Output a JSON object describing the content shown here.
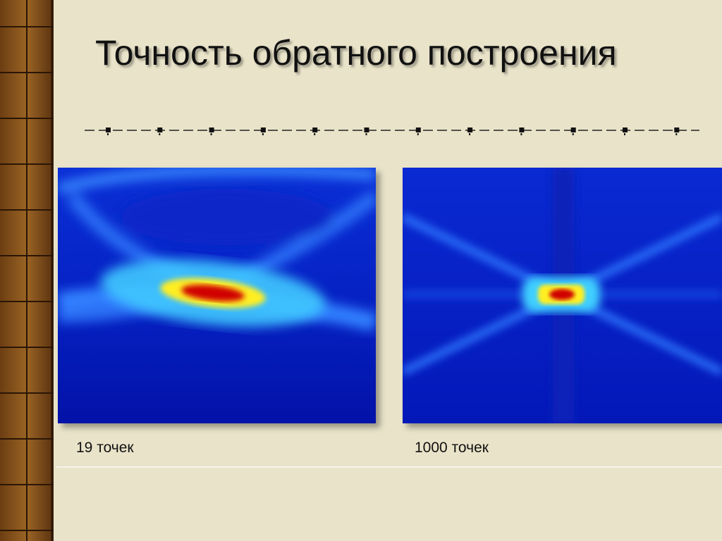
{
  "slide": {
    "title": "Точность обратного построения",
    "figures": [
      {
        "caption": "19 точек"
      },
      {
        "caption": "1000 точек"
      }
    ]
  }
}
